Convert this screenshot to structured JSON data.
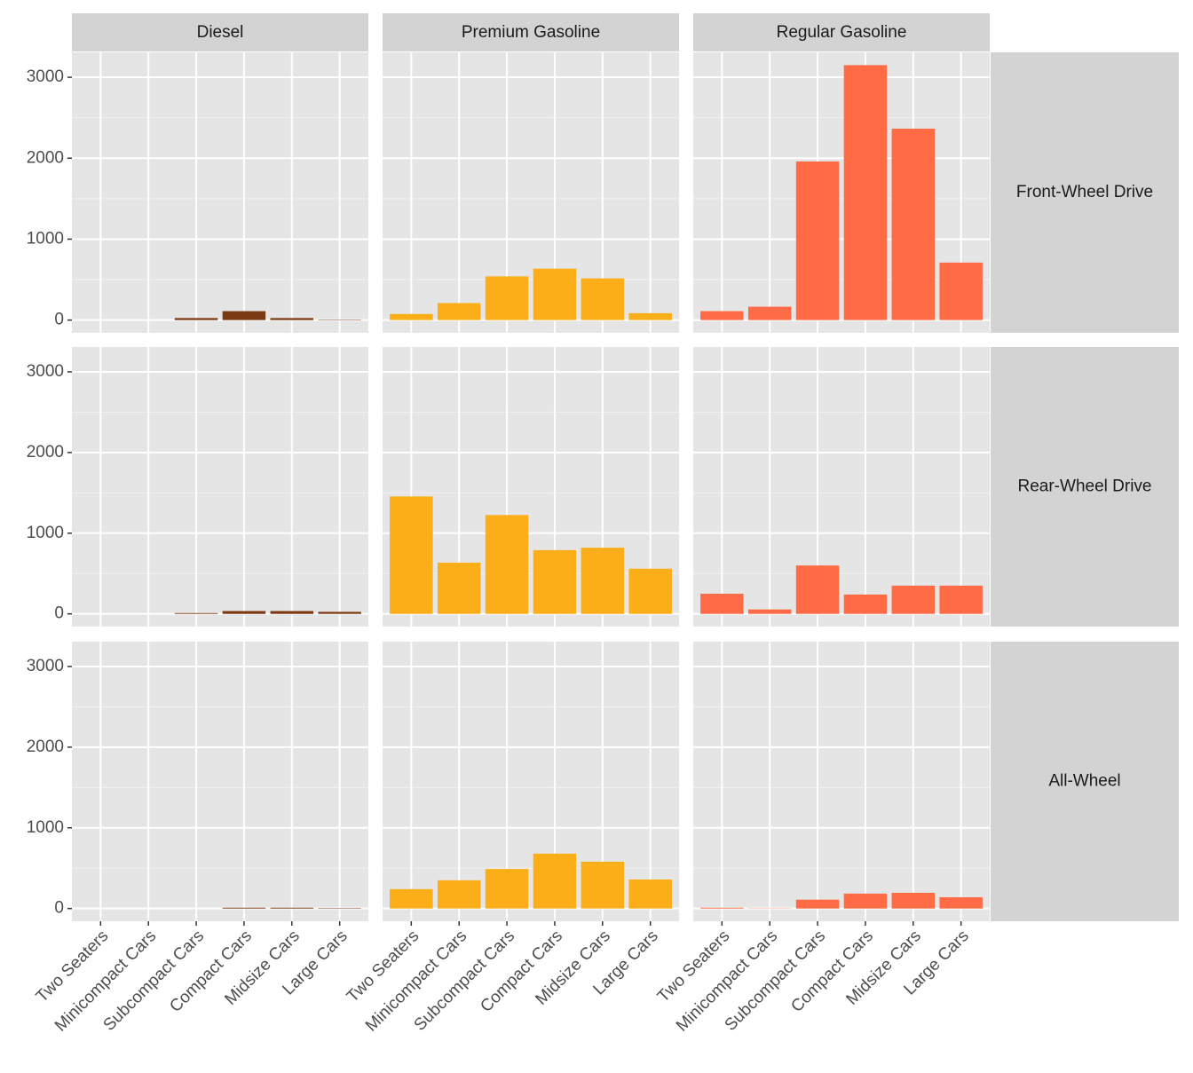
{
  "chart_data": {
    "type": "bar",
    "categories": [
      "Two Seaters",
      "Minicompact Cars",
      "Subcompact Cars",
      "Compact Cars",
      "Midsize Cars",
      "Large Cars"
    ],
    "column_labels": [
      "Diesel",
      "Premium Gasoline",
      "Regular Gasoline"
    ],
    "row_labels": [
      "Front-Wheel Drive",
      "Rear-Wheel Drive",
      "All-Wheel"
    ],
    "colors": [
      "#7b3a12",
      "#fbae17",
      "#ff6b45"
    ],
    "values": [
      [
        [
          0,
          0,
          25,
          110,
          25,
          5
        ],
        [
          75,
          210,
          540,
          635,
          515,
          85
        ],
        [
          110,
          165,
          1960,
          3150,
          2365,
          710
        ]
      ],
      [
        [
          0,
          0,
          10,
          35,
          35,
          25
        ],
        [
          1455,
          635,
          1225,
          790,
          820,
          560
        ],
        [
          250,
          55,
          600,
          240,
          350,
          350
        ]
      ],
      [
        [
          0,
          0,
          0,
          10,
          10,
          5
        ],
        [
          240,
          350,
          490,
          680,
          580,
          360
        ],
        [
          10,
          3,
          110,
          185,
          195,
          140
        ]
      ]
    ],
    "ylim": [
      -157.5,
      3307.5
    ],
    "yticks": [
      0,
      1000,
      2000,
      3000
    ],
    "grid": true
  }
}
